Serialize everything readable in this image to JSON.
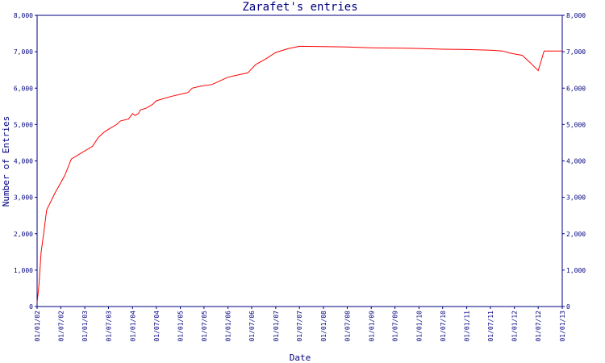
{
  "chart_data": {
    "type": "line",
    "title": "Zarafet's entries",
    "xlabel": "Date",
    "ylabel": "Number of Entries",
    "ylim": [
      0,
      8000
    ],
    "y_ticks": [
      0,
      1000,
      2000,
      3000,
      4000,
      5000,
      6000,
      7000,
      8000
    ],
    "y_tick_labels": [
      "0",
      "1,000",
      "2,000",
      "3,000",
      "4,000",
      "5,000",
      "6,000",
      "7,000",
      "8,000"
    ],
    "x_range": [
      "2002-01-01",
      "2013-01-01"
    ],
    "x_ticks": [
      "2002-01-01",
      "2002-07-01",
      "2003-01-01",
      "2003-07-01",
      "2004-01-01",
      "2004-07-01",
      "2005-01-01",
      "2005-07-01",
      "2006-01-01",
      "2006-07-01",
      "2007-01-01",
      "2007-07-01",
      "2008-01-01",
      "2008-07-01",
      "2009-01-01",
      "2009-07-01",
      "2010-01-01",
      "2010-07-01",
      "2011-01-01",
      "2011-07-01",
      "2012-01-01",
      "2012-07-01",
      "2013-01-01"
    ],
    "x_tick_labels": [
      "01/01/02",
      "01/07/02",
      "01/01/03",
      "01/07/03",
      "01/01/04",
      "01/07/04",
      "01/01/05",
      "01/07/05",
      "01/01/06",
      "01/07/06",
      "01/01/07",
      "01/07/07",
      "01/01/08",
      "01/07/08",
      "01/01/09",
      "01/07/09",
      "01/01/10",
      "01/07/10",
      "01/01/11",
      "01/07/11",
      "01/01/12",
      "01/07/12",
      "01/01/13"
    ],
    "grid": false,
    "series": [
      {
        "color": "#ff0000",
        "points": [
          [
            "2002-01-01",
            100
          ],
          [
            "2002-01-15",
            600
          ],
          [
            "2002-02-01",
            1500
          ],
          [
            "2002-02-20",
            2000
          ],
          [
            "2002-03-15",
            2650
          ],
          [
            "2002-05-15",
            3100
          ],
          [
            "2002-08-01",
            3600
          ],
          [
            "2002-09-20",
            4050
          ],
          [
            "2002-12-20",
            4250
          ],
          [
            "2003-03-01",
            4400
          ],
          [
            "2003-04-15",
            4650
          ],
          [
            "2003-06-01",
            4800
          ],
          [
            "2003-07-15",
            4900
          ],
          [
            "2003-09-01",
            5000
          ],
          [
            "2003-10-01",
            5100
          ],
          [
            "2003-12-01",
            5150
          ],
          [
            "2004-01-01",
            5300
          ],
          [
            "2004-01-20",
            5250
          ],
          [
            "2004-02-15",
            5300
          ],
          [
            "2004-03-01",
            5400
          ],
          [
            "2004-04-15",
            5450
          ],
          [
            "2004-06-01",
            5550
          ],
          [
            "2004-07-01",
            5650
          ],
          [
            "2004-09-01",
            5720
          ],
          [
            "2004-11-01",
            5780
          ],
          [
            "2005-01-01",
            5830
          ],
          [
            "2005-03-01",
            5880
          ],
          [
            "2005-04-01",
            6000
          ],
          [
            "2005-06-01",
            6050
          ],
          [
            "2005-09-01",
            6100
          ],
          [
            "2005-11-01",
            6200
          ],
          [
            "2006-01-01",
            6300
          ],
          [
            "2006-03-01",
            6350
          ],
          [
            "2006-06-01",
            6420
          ],
          [
            "2006-08-01",
            6650
          ],
          [
            "2006-10-15",
            6800
          ],
          [
            "2007-01-01",
            6980
          ],
          [
            "2007-04-01",
            7080
          ],
          [
            "2007-07-01",
            7150
          ],
          [
            "2008-01-01",
            7140
          ],
          [
            "2008-07-01",
            7130
          ],
          [
            "2009-01-01",
            7110
          ],
          [
            "2009-07-01",
            7100
          ],
          [
            "2010-01-01",
            7090
          ],
          [
            "2010-07-01",
            7070
          ],
          [
            "2011-01-01",
            7060
          ],
          [
            "2011-07-01",
            7040
          ],
          [
            "2011-10-01",
            7020
          ],
          [
            "2011-12-01",
            6960
          ],
          [
            "2012-03-01",
            6900
          ],
          [
            "2012-05-01",
            6700
          ],
          [
            "2012-07-01",
            6480
          ],
          [
            "2012-08-15",
            7020
          ],
          [
            "2013-01-01",
            7020
          ]
        ]
      }
    ]
  },
  "colors": {
    "axis": "#000080",
    "line": "#ff0000",
    "background": "#ffffff"
  }
}
